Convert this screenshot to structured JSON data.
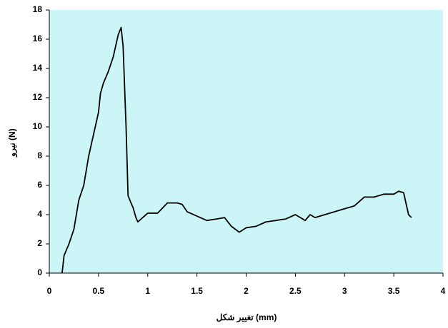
{
  "chart_data": {
    "type": "line",
    "xlabel": "تغییر شکل (mm)",
    "ylabel": "نیرو (N)",
    "background": "#ccf5f7",
    "grid": false,
    "series": [
      {
        "color": "#000000",
        "x": [
          0.13,
          0.15,
          0.2,
          0.25,
          0.3,
          0.35,
          0.4,
          0.45,
          0.5,
          0.52,
          0.55,
          0.6,
          0.65,
          0.7,
          0.73,
          0.75,
          0.78,
          0.8,
          0.83,
          0.85,
          0.88,
          0.9,
          0.95,
          1.0,
          1.1,
          1.2,
          1.3,
          1.35,
          1.4,
          1.5,
          1.6,
          1.7,
          1.78,
          1.85,
          1.93,
          2.0,
          2.1,
          2.2,
          2.3,
          2.4,
          2.5,
          2.6,
          2.65,
          2.7,
          2.8,
          2.9,
          3.0,
          3.1,
          3.2,
          3.3,
          3.4,
          3.5,
          3.55,
          3.6,
          3.65,
          3.68
        ],
        "values": [
          0,
          1.2,
          2,
          3,
          5,
          6,
          8,
          9.5,
          11,
          12.3,
          13,
          13.8,
          14.8,
          16.3,
          16.8,
          15.5,
          10,
          5.3,
          4.8,
          4.5,
          3.8,
          3.5,
          3.8,
          4.1,
          4.1,
          4.8,
          4.8,
          4.7,
          4.2,
          3.9,
          3.6,
          3.7,
          3.8,
          3.2,
          2.8,
          3.1,
          3.2,
          3.5,
          3.6,
          3.7,
          4.0,
          3.6,
          4.0,
          3.8,
          4.0,
          4.2,
          4.4,
          4.6,
          5.2,
          5.2,
          5.4,
          5.4,
          5.6,
          5.5,
          4.0,
          3.8
        ]
      }
    ],
    "xlim": [
      0,
      4
    ],
    "xticks": [
      0,
      0.5,
      1,
      1.5,
      2,
      2.5,
      3,
      3.5,
      4
    ],
    "ylim": [
      0,
      18
    ],
    "yticks": [
      0,
      2,
      4,
      6,
      8,
      10,
      12,
      14,
      16,
      18
    ]
  }
}
